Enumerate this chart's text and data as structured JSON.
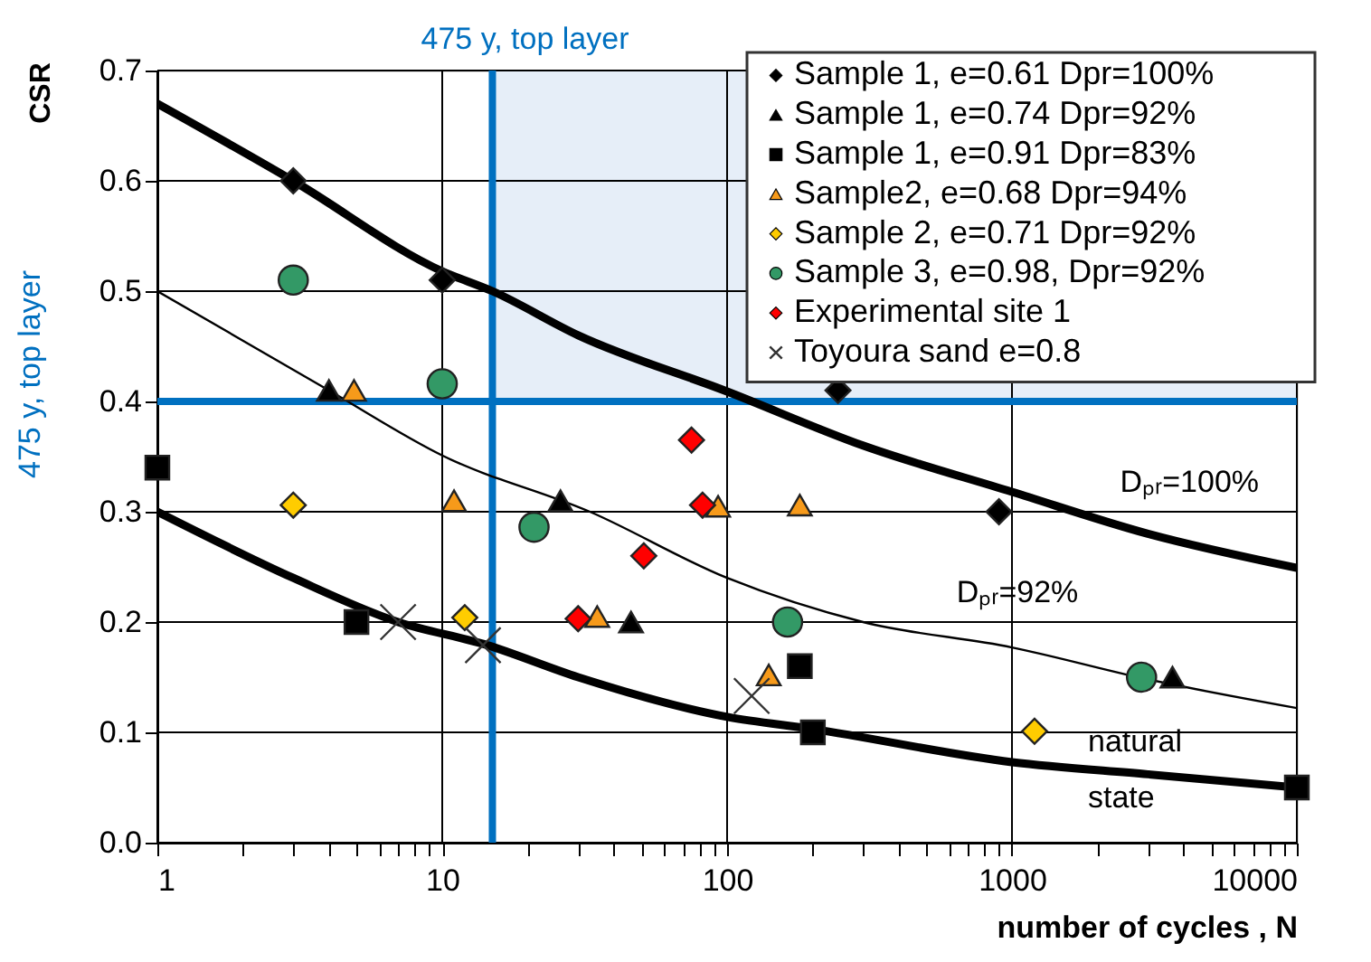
{
  "chart_data": {
    "type": "scatter",
    "xlabel": "number of cycles , N",
    "ylabel": "CSR",
    "log": "x",
    "xlim": [
      1,
      10000
    ],
    "ylim": [
      0,
      0.7
    ],
    "xticks": [
      1,
      {
        "value": 2,
        "label": null
      },
      {
        "value": 3,
        "label": null
      },
      {
        "value": 4,
        "label": null
      },
      {
        "value": 5,
        "label": null
      },
      {
        "value": 6,
        "label": null
      },
      {
        "value": 7,
        "label": null
      },
      {
        "value": 8,
        "label": null
      },
      {
        "value": 9,
        "label": null
      },
      10,
      {
        "value": 20,
        "label": null
      },
      {
        "value": 30,
        "label": null
      },
      {
        "value": 40,
        "label": null
      },
      {
        "value": 50,
        "label": null
      },
      {
        "value": 60,
        "label": null
      },
      {
        "value": 70,
        "label": null
      },
      {
        "value": 80,
        "label": null
      },
      {
        "value": 90,
        "label": null
      },
      100,
      {
        "value": 200,
        "label": null
      },
      {
        "value": 300,
        "label": null
      },
      {
        "value": 400,
        "label": null
      },
      {
        "value": 500,
        "label": null
      },
      {
        "value": 600,
        "label": null
      },
      {
        "value": 700,
        "label": null
      },
      {
        "value": 800,
        "label": null
      },
      {
        "value": 900,
        "label": null
      },
      1000,
      {
        "value": 2000,
        "label": null
      },
      {
        "value": 3000,
        "label": null
      },
      {
        "value": 4000,
        "label": null
      },
      {
        "value": 5000,
        "label": null
      },
      {
        "value": 6000,
        "label": null
      },
      {
        "value": 7000,
        "label": null
      },
      {
        "value": 8000,
        "label": null
      },
      {
        "value": 9000,
        "label": null
      },
      10000
    ],
    "yticks": [
      {
        "value": 0,
        "label": "0.0"
      },
      0.1,
      0.2,
      0.3,
      0.4,
      0.5,
      0.6,
      0.7
    ],
    "grid": true,
    "legend": "top right",
    "series": [
      {
        "name": "Sample 1, e=0.61 Dpr=100%",
        "marker": "diamond",
        "color": "#000000",
        "x": [
          3,
          10,
          245,
          900
        ],
        "values": [
          0.6,
          0.51,
          0.41,
          0.3
        ]
      },
      {
        "name": "Sample 1, e=0.74 Dpr=92%",
        "marker": "triangle",
        "color": "#000000",
        "x": [
          4,
          26,
          46,
          3660
        ],
        "values": [
          0.41,
          0.31,
          0.2,
          0.15
        ]
      },
      {
        "name": "Sample 1,  e=0.91 Dpr=83%",
        "marker": "square",
        "color": "#000000",
        "x": [
          1,
          5,
          180,
          200,
          10000
        ],
        "values": [
          0.34,
          0.2,
          0.16,
          0.1,
          0.05
        ]
      },
      {
        "name": "Sample2, e=0.68 Dpr=94%",
        "marker": "triangle",
        "color": "#f79a1a",
        "x": [
          4.9,
          11,
          35,
          93,
          180,
          140
        ],
        "values": [
          0.41,
          0.31,
          0.205,
          0.305,
          0.306,
          0.152
        ]
      },
      {
        "name": "Sample 2, e=0.71 Dpr=92%",
        "marker": "diamond",
        "color": "#ffcc00",
        "x": [
          3,
          12,
          1200
        ],
        "values": [
          0.306,
          0.204,
          0.101
        ]
      },
      {
        "name": "Sample 3, e=0.98, Dpr=92%",
        "marker": "circle",
        "color": "#339966",
        "x": [
          3,
          10,
          21,
          163,
          2850
        ],
        "values": [
          0.51,
          0.416,
          0.286,
          0.2,
          0.15
        ]
      },
      {
        "name": "Experimental site 1",
        "marker": "diamond",
        "color": "#ff0000",
        "x": [
          75,
          82,
          51,
          30
        ],
        "values": [
          0.365,
          0.306,
          0.26,
          0.203
        ]
      },
      {
        "name": "Toyoura sand e=0.8",
        "marker": "cross",
        "color": "#333333",
        "x": [
          7,
          13.9,
          122
        ],
        "values": [
          0.2,
          0.179,
          0.133
        ]
      },
      {
        "name": "Dₚᵣ=100%",
        "type": "line",
        "color": "#000000",
        "x": [
          1,
          3,
          10,
          15,
          30,
          100,
          300,
          1000,
          3000,
          10000
        ],
        "values": [
          0.67,
          0.6,
          0.518,
          0.5,
          0.46,
          0.409,
          0.36,
          0.318,
          0.28,
          0.249
        ]
      },
      {
        "name": "Dₚᵣ=92%",
        "type": "line",
        "color": "#000000",
        "x": [
          1,
          4,
          10,
          33,
          100,
          300,
          1000,
          3000,
          10000
        ],
        "values": [
          0.5,
          0.41,
          0.351,
          0.3,
          0.24,
          0.2,
          0.177,
          0.148,
          0.122
        ]
      },
      {
        "name": "natural\nstate",
        "type": "line",
        "color": "#000000",
        "x": [
          1,
          3,
          7,
          14,
          30,
          100,
          200,
          1000,
          3000,
          10000
        ],
        "values": [
          0.3,
          0.24,
          0.2,
          0.18,
          0.15,
          0.114,
          0.103,
          0.073,
          0.062,
          0.05
        ]
      }
    ],
    "ref_lines": [
      {
        "axis": "x",
        "value": 15,
        "label": "475 y, top layer",
        "color": "#0070c0"
      },
      {
        "axis": "y",
        "value": 0.4,
        "label": "475 y, top layer",
        "color": "#0070c0"
      }
    ],
    "bands": [
      {
        "axis": "x",
        "from": 15,
        "to": 10000,
        "color": "#e6eef8"
      }
    ]
  }
}
